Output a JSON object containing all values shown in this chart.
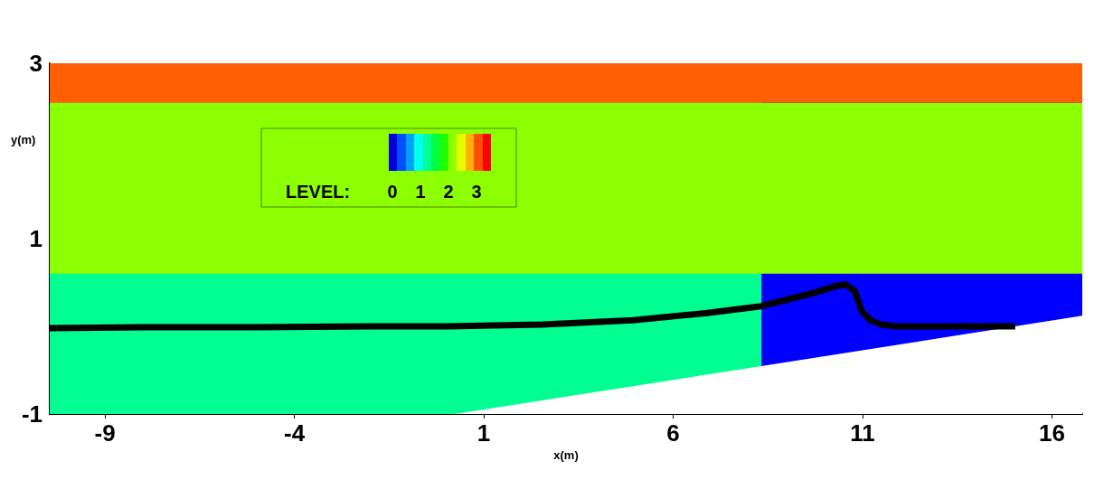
{
  "chart_data": {
    "type": "line",
    "xlabel": "x(m)",
    "ylabel": "y(m)",
    "clabel": "LEVEL:",
    "xlim": [
      -10.46,
      16.8
    ],
    "xticks": [
      -9,
      -4,
      1,
      6,
      11,
      16
    ],
    "ylim": [
      -1,
      3
    ],
    "yticks": [
      {
        "value": -1,
        "label": "-1"
      },
      {
        "value": -0.6,
        "label": null
      },
      {
        "value": -0.2,
        "label": null
      },
      {
        "value": 0.2,
        "label": null
      },
      {
        "value": 0.6,
        "label": null
      },
      {
        "value": 1,
        "label": "1"
      },
      {
        "value": 1.4,
        "label": null
      },
      {
        "value": 1.8,
        "label": null
      },
      {
        "value": 2.2,
        "label": null
      },
      {
        "value": 2.6,
        "label": null
      },
      {
        "value": 3,
        "label": "3"
      }
    ],
    "annotations": [
      "0",
      "1",
      "2",
      "3"
    ],
    "bands": [
      {
        "axis": "x",
        "from": -10.46,
        "to": 8.33,
        "color": "#00ff90"
      },
      {
        "axis": "x",
        "from": 8.33,
        "to": 16.8,
        "color": "#0000ff"
      },
      {
        "axis": "y",
        "from": 0.6,
        "to": 2.55,
        "color": "#8cff00"
      },
      {
        "axis": "y",
        "from": 2.55,
        "to": 3,
        "color": "#ff5f00"
      }
    ],
    "marker": "none",
    "series": [
      {
        "type": "area",
        "color": "#ffffff",
        "x": [
          0.24,
          16.8
        ],
        "values": [
          -1,
          0.12
        ]
      },
      {
        "color": "#000000",
        "x": [
          -10.46,
          -8,
          -5,
          -2,
          0,
          2.55,
          4.94,
          6.85,
          8.33,
          9.7,
          10.3,
          10.55,
          10.8,
          10.98,
          11.2,
          11.5,
          11.86,
          13,
          15.03
        ],
        "values": [
          -0.02,
          -0.01,
          -0.01,
          0,
          0,
          0.02,
          0.07,
          0.15,
          0.23,
          0.38,
          0.46,
          0.48,
          0.4,
          0.17,
          0.07,
          0.02,
          0,
          0,
          0
        ]
      }
    ]
  }
}
